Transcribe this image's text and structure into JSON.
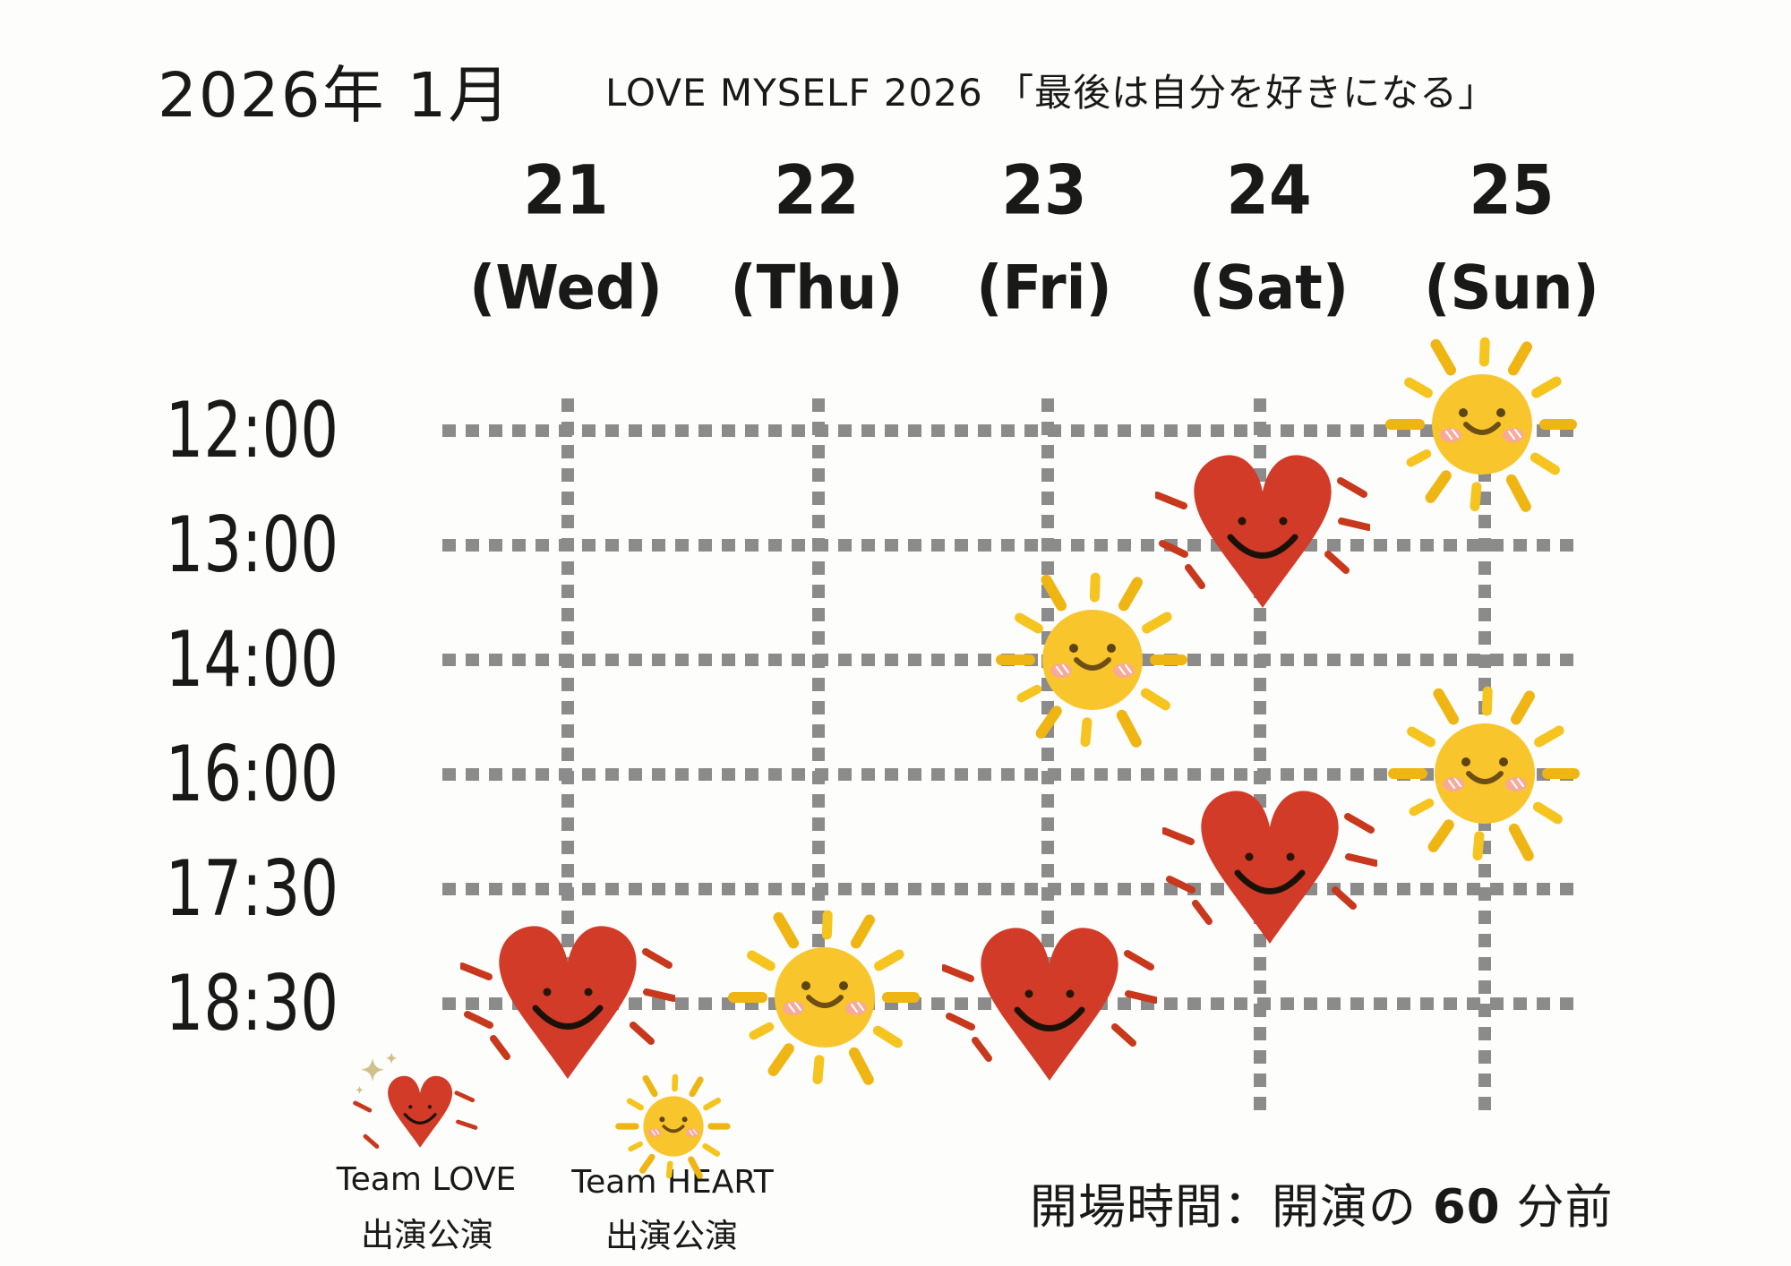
{
  "title": "2026年 1月",
  "subtitle": "LOVE MYSELF 2026 「最後は自分を好きになる」",
  "days": [
    {
      "num": "21",
      "dow": "(Wed)"
    },
    {
      "num": "22",
      "dow": "(Thu)"
    },
    {
      "num": "23",
      "dow": "(Fri)"
    },
    {
      "num": "24",
      "dow": "(Sat)"
    },
    {
      "num": "25",
      "dow": "(Sun)"
    }
  ],
  "times": [
    "12:00",
    "13:00",
    "14:00",
    "16:00",
    "17:30",
    "18:30"
  ],
  "schedule": [
    {
      "date": "25",
      "dow": "(Sun)",
      "time": "12:00",
      "team": "HEART",
      "marker": "sun"
    },
    {
      "date": "24",
      "dow": "(Sat)",
      "time": "13:00",
      "team": "LOVE",
      "marker": "heart"
    },
    {
      "date": "23",
      "dow": "(Fri)",
      "time": "14:00",
      "team": "HEART",
      "marker": "sun"
    },
    {
      "date": "25",
      "dow": "(Sun)",
      "time": "16:00",
      "team": "HEART",
      "marker": "sun"
    },
    {
      "date": "24",
      "dow": "(Sat)",
      "time": "17:30",
      "team": "LOVE",
      "marker": "heart"
    },
    {
      "date": "21",
      "dow": "(Wed)",
      "time": "18:30",
      "team": "LOVE",
      "marker": "heart"
    },
    {
      "date": "22",
      "dow": "(Thu)",
      "time": "18:30",
      "team": "HEART",
      "marker": "sun"
    },
    {
      "date": "23",
      "dow": "(Fri)",
      "time": "18:30",
      "team": "LOVE",
      "marker": "heart"
    }
  ],
  "legend": [
    {
      "icon": "smiling-heart-icon",
      "team": "Team LOVE",
      "role": "出演公演"
    },
    {
      "icon": "smiling-sun-icon",
      "team": "Team HEART",
      "role": "出演公演"
    }
  ],
  "note": {
    "prefix": "開場時間：開演の ",
    "strong": "60",
    "suffix": " 分前"
  },
  "colors": {
    "background": "#fdfdfb",
    "text": "#191919",
    "grid_dot": "#8b8b8b",
    "heart_red": "#d23b28",
    "dash_red": "#c8381c",
    "sun_body": "#f9c52d",
    "sun_ray_dark": "#efb512",
    "sun_ray_light": "#f6c41e",
    "blush_pink": "#f7a5a3",
    "face_brown": "#5d4415",
    "sparkle_gold": "#cfc08c"
  },
  "chart_data": {
    "type": "table",
    "title": "LOVE MYSELF 2026 「最後は自分を好きになる」",
    "subtitle": "2026年 1月",
    "columns": [
      "21 (Wed)",
      "22 (Thu)",
      "23 (Fri)",
      "24 (Sat)",
      "25 (Sun)"
    ],
    "rows": [
      "12:00",
      "13:00",
      "14:00",
      "16:00",
      "17:30",
      "18:30"
    ],
    "cells": [
      {
        "column": "25 (Sun)",
        "row": "12:00",
        "value": "Team HEART 出演公演"
      },
      {
        "column": "24 (Sat)",
        "row": "13:00",
        "value": "Team LOVE 出演公演"
      },
      {
        "column": "23 (Fri)",
        "row": "14:00",
        "value": "Team HEART 出演公演"
      },
      {
        "column": "25 (Sun)",
        "row": "16:00",
        "value": "Team HEART 出演公演"
      },
      {
        "column": "24 (Sat)",
        "row": "17:30",
        "value": "Team LOVE 出演公演"
      },
      {
        "column": "21 (Wed)",
        "row": "18:30",
        "value": "Team LOVE 出演公演"
      },
      {
        "column": "22 (Thu)",
        "row": "18:30",
        "value": "Team HEART 出演公演"
      },
      {
        "column": "23 (Fri)",
        "row": "18:30",
        "value": "Team LOVE 出演公演"
      }
    ],
    "legend_position": "bottom-left",
    "grid": "dotted"
  }
}
